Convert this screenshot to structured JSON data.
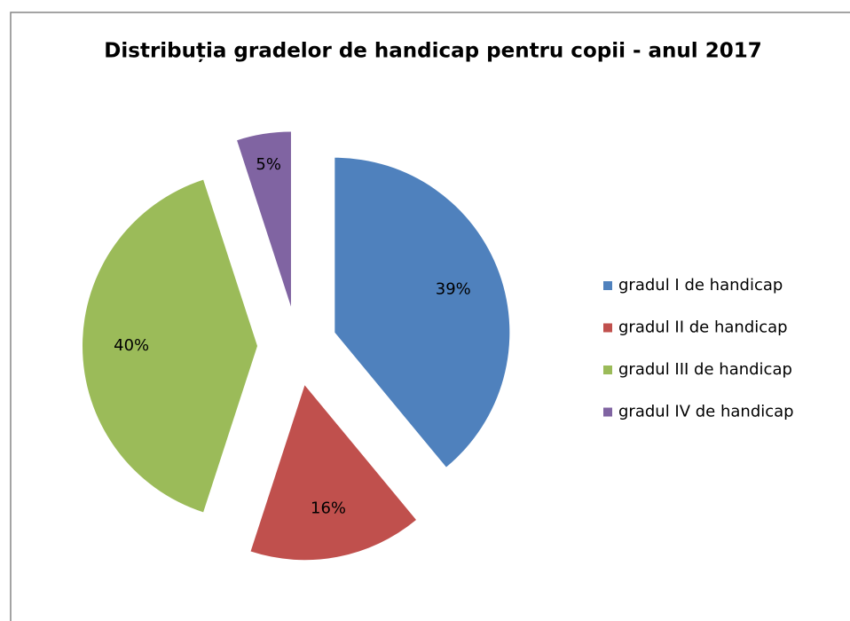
{
  "chart_data": {
    "type": "pie",
    "title": "Distribuția gradelor de handicap pentru copii - anul 2017",
    "categories": [
      "gradul I de handicap",
      "gradul II de handicap",
      "gradul III de handicap",
      "gradul IV de handicap"
    ],
    "values": [
      39,
      16,
      40,
      5
    ],
    "value_labels": [
      "39%",
      "16%",
      "40%",
      "5%"
    ],
    "colors": [
      "#4f81bd",
      "#c0504d",
      "#9bbb59",
      "#8064a2"
    ],
    "legend": "right"
  }
}
